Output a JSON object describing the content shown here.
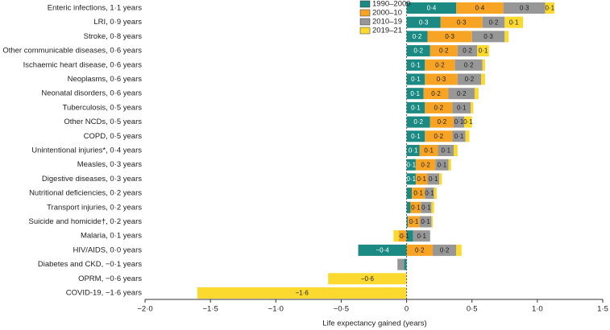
{
  "chart_data": {
    "type": "stacked-bar-horizontal",
    "xlabel": "Life expectancy gained (years)",
    "categories": [
      "Enteric infections, 1·1 years",
      "LRI, 0·9 years",
      "Stroke, 0·8 years",
      "Other communicable diseases, 0·6 years",
      "Ischaemic heart disease, 0·6 years",
      "Neoplasms, 0·6 years",
      "Neonatal disorders, 0·6 years",
      "Tuberculosis, 0·5 years",
      "Other NCDs, 0·5 years",
      "COPD, 0·5 years",
      "Unintentional injuries*, 0·4 years",
      "Measles, 0·3 years",
      "Digestive diseases, 0·3 years",
      "Nutritional deficiencies, 0·2 years",
      "Transport injuries, 0·2 years",
      "Suicide and homicide†, 0·2 years",
      "Malaria, 0·1 years",
      "HIV/AIDS, 0·0 years",
      "Diabetes and CKD, −0·1 years",
      "OPRM, −0·6 years",
      "COVID-19, −1·6 years"
    ],
    "series": [
      {
        "name": "1990–2000",
        "color": "#1b8a83",
        "values": [
          0.38,
          0.26,
          0.16,
          0.18,
          0.14,
          0.14,
          0.13,
          0.14,
          0.18,
          0.14,
          0.1,
          0.07,
          0.07,
          0.04,
          0.03,
          0.01,
          0.05,
          -0.37,
          -0.02,
          0,
          0
        ],
        "value_labels": [
          "0·4",
          "0·3",
          "0·2",
          "0·2",
          "0·1",
          "0·1",
          "0·1",
          "0·1",
          "0·2",
          "0·1",
          "0·1",
          "0·1",
          "0·1",
          null,
          null,
          null,
          null,
          "−0·4",
          null,
          null,
          null
        ]
      },
      {
        "name": "2000–10",
        "color": "#f7a425",
        "values": [
          0.36,
          0.32,
          0.34,
          0.21,
          0.23,
          0.25,
          0.19,
          0.21,
          0.18,
          0.21,
          0.14,
          0.15,
          0.09,
          0.1,
          0.08,
          0.09,
          -0.06,
          0.2,
          0,
          0,
          0
        ],
        "value_labels": [
          "0·4",
          "0·3",
          "0·3",
          "0·2",
          "0·2",
          "0·3",
          "0·2",
          "0·2",
          "0·2",
          "0·2",
          "0·1",
          "0·2",
          "0·1",
          "0·1",
          "0·1",
          "0·1",
          "−0·1",
          "0·2",
          null,
          null,
          null
        ]
      },
      {
        "name": "2010–19",
        "color": "#979797",
        "values": [
          0.32,
          0.17,
          0.25,
          0.15,
          0.21,
          0.18,
          0.2,
          0.14,
          0.08,
          0.1,
          0.12,
          0.1,
          0.09,
          0.07,
          0.08,
          0.09,
          0.13,
          0.18,
          -0.05,
          0,
          0
        ],
        "value_labels": [
          "0·3",
          "0·2",
          "0·3",
          "0·2",
          "0·2",
          "0·2",
          "0·2",
          "0·1",
          "0·1",
          "0·1",
          "0·1",
          "0·1",
          "0·1",
          "0·1",
          "0·1",
          "0·1",
          "0·1",
          "0·2",
          null,
          null,
          null
        ]
      },
      {
        "name": "2019–21",
        "color": "#fcd92f",
        "values": [
          0.07,
          0.14,
          0.03,
          0.09,
          0.02,
          0.03,
          0.03,
          0.02,
          0.06,
          0.03,
          0.03,
          0.02,
          0.02,
          0.02,
          0.02,
          0.01,
          -0.04,
          0.04,
          0,
          -0.6,
          -1.6
        ],
        "value_labels": [
          "0·1",
          "0·1",
          null,
          "0·1",
          null,
          null,
          null,
          null,
          "0·1",
          null,
          null,
          null,
          null,
          null,
          null,
          null,
          null,
          null,
          null,
          "−0·6",
          "−1·6"
        ]
      }
    ],
    "xlim": [
      -2.0,
      1.5
    ],
    "xticks": [
      {
        "value": -2.0,
        "label": "−2·0"
      },
      {
        "value": -1.5,
        "label": "−1·5"
      },
      {
        "value": -1.0,
        "label": "−1·0"
      },
      {
        "value": -0.5,
        "label": "−0·5"
      },
      0,
      {
        "value": 0.5,
        "label": "0·5"
      },
      {
        "value": 1.0,
        "label": "1·0"
      },
      {
        "value": 1.5,
        "label": "1·5"
      }
    ],
    "legend": "top-left-of-zero"
  }
}
